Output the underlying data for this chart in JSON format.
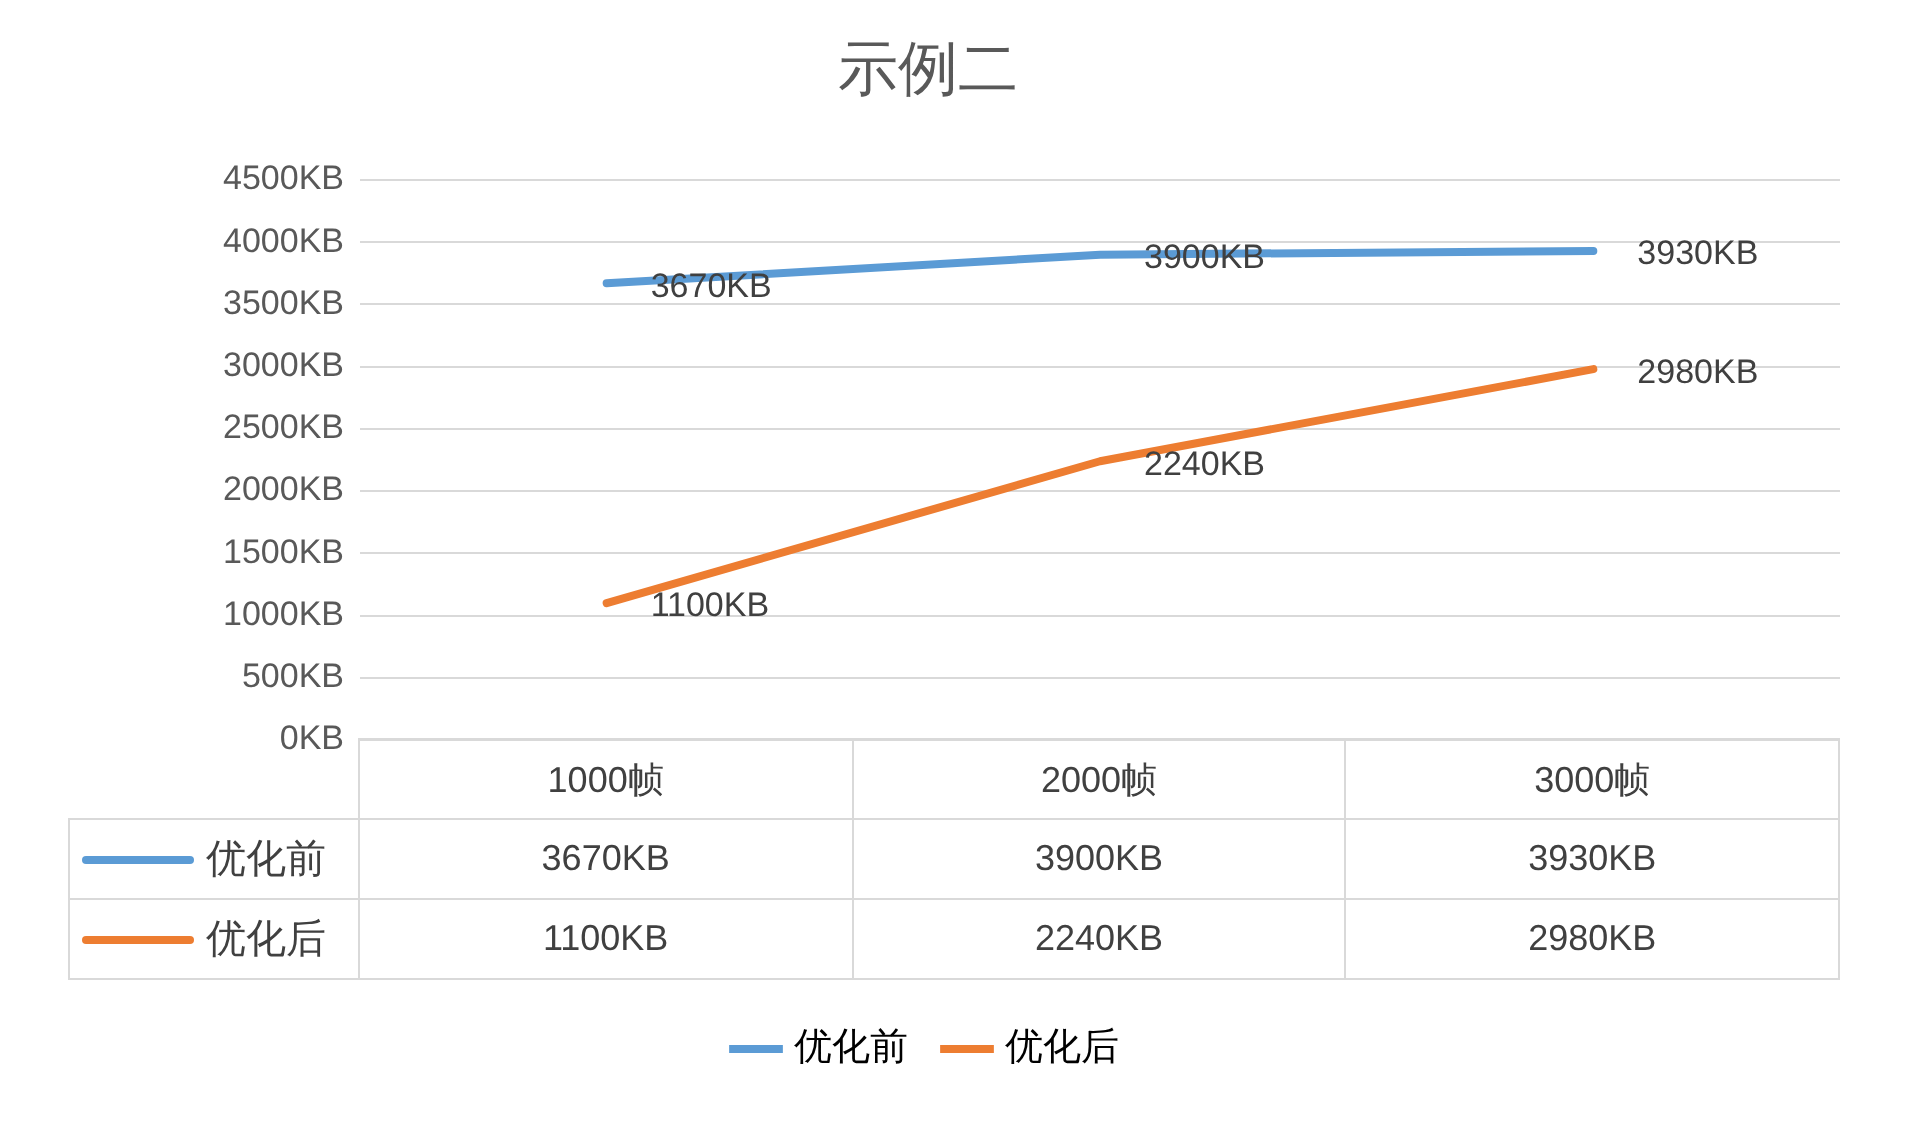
{
  "chart_data": {
    "type": "line",
    "title": "示例二",
    "categories": [
      "1000帧",
      "2000帧",
      "3000帧"
    ],
    "series": [
      {
        "name": "优化前",
        "color": "#5b9bd5",
        "values": [
          3670,
          3900,
          3930
        ],
        "value_labels": [
          "3670KB",
          "3900KB",
          "3930KB"
        ]
      },
      {
        "name": "优化后",
        "color": "#ed7d31",
        "values": [
          1100,
          2240,
          2980
        ],
        "value_labels": [
          "1100KB",
          "2240KB",
          "2980KB"
        ]
      }
    ],
    "ylim": [
      0,
      4500
    ],
    "yticks": [
      {
        "value": 0,
        "label": "0KB"
      },
      {
        "value": 500,
        "label": "500KB"
      },
      {
        "value": 1000,
        "label": "1000KB"
      },
      {
        "value": 1500,
        "label": "1500KB"
      },
      {
        "value": 2000,
        "label": "2000KB"
      },
      {
        "value": 2500,
        "label": "2500KB"
      },
      {
        "value": 3000,
        "label": "3000KB"
      },
      {
        "value": 3500,
        "label": "3500KB"
      },
      {
        "value": 4000,
        "label": "4000KB"
      },
      {
        "value": 4500,
        "label": "4500KB"
      }
    ],
    "grid": "y",
    "legend": "bottom",
    "marker": "none",
    "line_style": "solid"
  }
}
